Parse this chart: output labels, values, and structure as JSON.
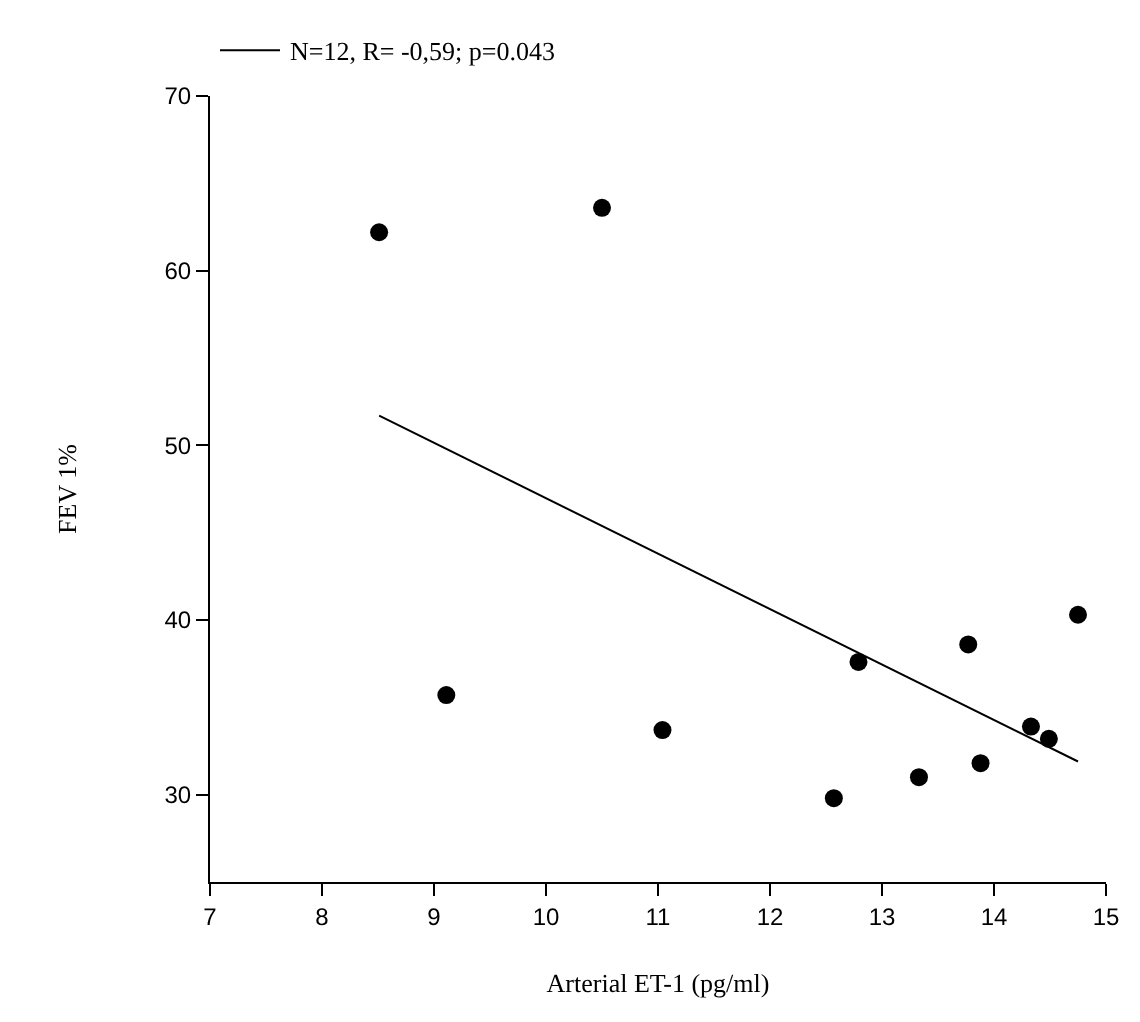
{
  "chart_data": {
    "type": "scatter",
    "xlabel": "Arterial ET-1 (pg/ml)",
    "ylabel": "FEV 1%",
    "xlim": [
      7,
      15
    ],
    "xticks": [
      7,
      8,
      9,
      10,
      11,
      12,
      13,
      14,
      15
    ],
    "ylim": [
      25,
      70
    ],
    "yticks": [
      30,
      40,
      50,
      60,
      70
    ],
    "legend": "top left",
    "marker": "circle",
    "series": [
      {
        "color": "#000000",
        "x": [
          8.51,
          10.5,
          9.11,
          11.04,
          12.57,
          12.79,
          13.33,
          13.77,
          13.88,
          14.33,
          14.49,
          14.75
        ],
        "values": [
          62.2,
          63.6,
          35.7,
          33.7,
          29.8,
          37.6,
          31.0,
          38.6,
          31.8,
          33.9,
          33.2,
          40.3
        ]
      },
      {
        "type": "line",
        "name": "N=12, R= -0,59; p=0.043",
        "color": "#000000",
        "marker": "none",
        "line_style": "solid",
        "x": [
          8.51,
          14.75
        ],
        "values": [
          51.7,
          31.9
        ]
      }
    ]
  }
}
